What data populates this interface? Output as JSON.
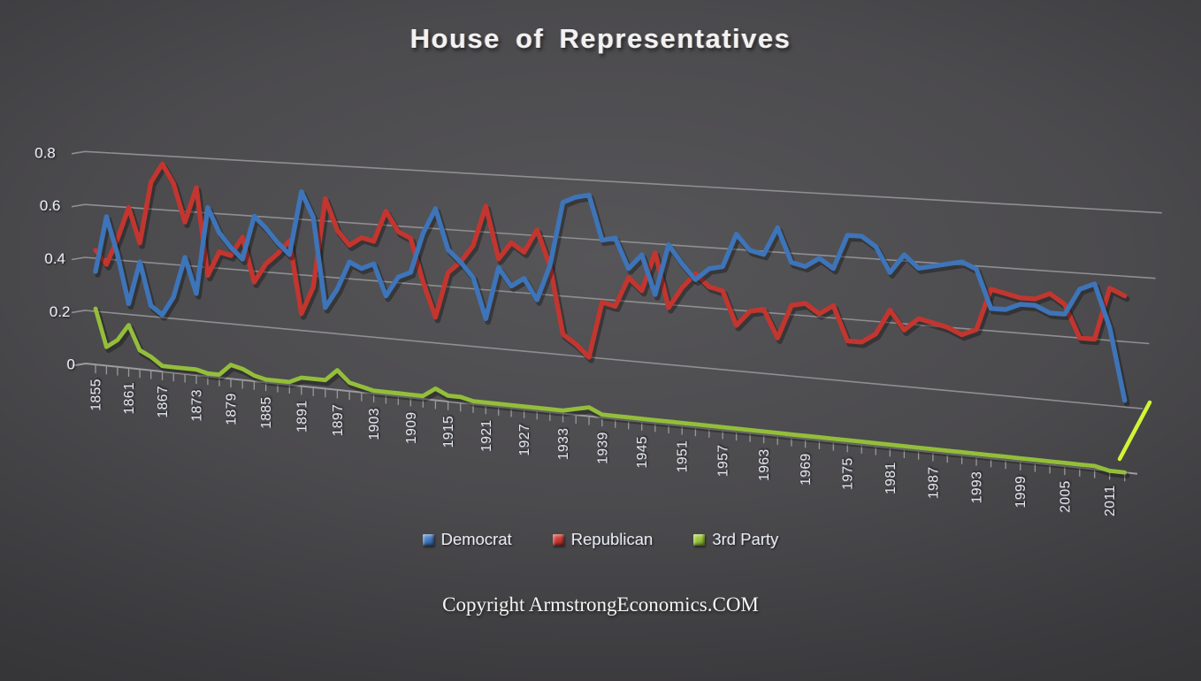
{
  "title": "House of Representatives",
  "copyright": "Copyright ArmstrongEconomics.COM",
  "y_axis": {
    "ticks": [
      "0",
      "0.2",
      "0.4",
      "0.6",
      "0.8"
    ],
    "min": 0,
    "max": 0.8
  },
  "x_axis": {
    "first_year": 1855,
    "last_year": 2013,
    "tick_step_years": 2,
    "label_step_years": 6,
    "labels": [
      "1855",
      "1861",
      "1867",
      "1873",
      "1879",
      "1885",
      "1891",
      "1897",
      "1903",
      "1909",
      "1915",
      "1921",
      "1927",
      "1933",
      "1939",
      "1945",
      "1951",
      "1957",
      "1963",
      "1969",
      "1975",
      "1981",
      "1987",
      "1993",
      "1999",
      "2005",
      "2011"
    ]
  },
  "legend": {
    "items": [
      "Democrat",
      "Republican",
      "3rd Party"
    ],
    "position": "bottom-center"
  },
  "chart_data": {
    "type": "line",
    "title": "House of Representatives",
    "x_start": 1855,
    "x_step": 2,
    "x_end": 2013,
    "ylim": [
      0,
      0.8
    ],
    "grid": "horizontal lines every 0.2, drawn with 3D perspective skew on dark background",
    "legend_position": "bottom-center",
    "series": [
      {
        "name": "Democrat",
        "color": "#3E74B8",
        "color_light": "#7FA9DC",
        "color_dark": "#27497E",
        "values": [
          0.35,
          0.56,
          0.42,
          0.24,
          0.4,
          0.24,
          0.21,
          0.28,
          0.43,
          0.3,
          0.62,
          0.53,
          0.48,
          0.44,
          0.6,
          0.56,
          0.51,
          0.47,
          0.7,
          0.61,
          0.29,
          0.36,
          0.46,
          0.44,
          0.46,
          0.35,
          0.42,
          0.44,
          0.58,
          0.67,
          0.53,
          0.49,
          0.44,
          0.3,
          0.48,
          0.42,
          0.45,
          0.38,
          0.5,
          0.72,
          0.74,
          0.75,
          0.6,
          0.61,
          0.51,
          0.56,
          0.43,
          0.6,
          0.54,
          0.49,
          0.53,
          0.54,
          0.65,
          0.6,
          0.59,
          0.68,
          0.57,
          0.56,
          0.59,
          0.56,
          0.67,
          0.67,
          0.64,
          0.56,
          0.62,
          0.58,
          0.59,
          0.6,
          0.61,
          0.59,
          0.47,
          0.47,
          0.49,
          0.49,
          0.47,
          0.47,
          0.55,
          0.57,
          0.44,
          0.22
        ]
      },
      {
        "name": "Republican",
        "color": "#C2362F",
        "color_light": "#E2736B",
        "color_dark": "#7E1F1B",
        "values": [
          0.43,
          0.38,
          0.48,
          0.6,
          0.47,
          0.7,
          0.77,
          0.7,
          0.56,
          0.69,
          0.37,
          0.46,
          0.45,
          0.52,
          0.36,
          0.43,
          0.47,
          0.52,
          0.26,
          0.36,
          0.68,
          0.57,
          0.52,
          0.55,
          0.54,
          0.65,
          0.58,
          0.56,
          0.41,
          0.29,
          0.45,
          0.49,
          0.55,
          0.69,
          0.51,
          0.57,
          0.54,
          0.62,
          0.5,
          0.27,
          0.24,
          0.2,
          0.39,
          0.38,
          0.48,
          0.44,
          0.57,
          0.39,
          0.46,
          0.51,
          0.47,
          0.46,
          0.35,
          0.4,
          0.41,
          0.32,
          0.43,
          0.44,
          0.41,
          0.44,
          0.33,
          0.33,
          0.36,
          0.44,
          0.38,
          0.42,
          0.41,
          0.4,
          0.38,
          0.4,
          0.53,
          0.52,
          0.51,
          0.51,
          0.53,
          0.5,
          0.4,
          0.4,
          0.56,
          0.54
        ]
      },
      {
        "name": "3rd Party",
        "color": "#94BE3A",
        "color_light": "#C2DE6C",
        "color_dark": "#5F7F22",
        "values": [
          0.21,
          0.07,
          0.1,
          0.16,
          0.07,
          0.05,
          0.02,
          0.02,
          0.02,
          0.02,
          0.01,
          0.01,
          0.05,
          0.04,
          0.02,
          0.01,
          0.01,
          0.01,
          0.03,
          0.03,
          0.03,
          0.07,
          0.03,
          0.02,
          0.01,
          0.01,
          0.01,
          0.01,
          0.01,
          0.04,
          0.02,
          0.02,
          0.01,
          0.01,
          0.01,
          0.01,
          0.01,
          0.01,
          0.01,
          0.01,
          0.02,
          0.03,
          0.01,
          0.01,
          0.01,
          0.01,
          0.01,
          0.01,
          0.01,
          0.01,
          0.01,
          0.01,
          0.01,
          0.01,
          0.01,
          0.01,
          0.01,
          0.01,
          0.01,
          0.01,
          0.01,
          0.01,
          0.01,
          0.01,
          0.01,
          0.01,
          0.01,
          0.01,
          0.01,
          0.01,
          0.01,
          0.01,
          0.01,
          0.01,
          0.01,
          0.01,
          0.01,
          0.01,
          0.0,
          0.0
        ]
      }
    ],
    "annotation": {
      "type": "highlight-line",
      "description": "bright hand-drawn segment rising steeply at far right above the 3rd-party line end",
      "color": "#D9FF36"
    }
  }
}
